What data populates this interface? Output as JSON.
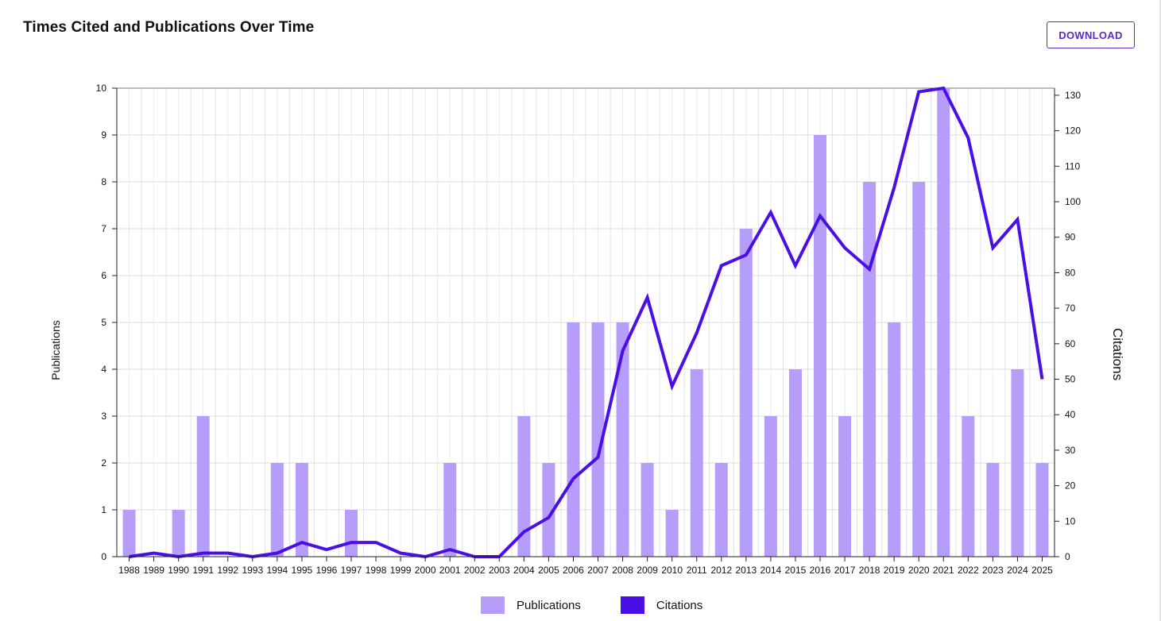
{
  "header": {
    "title": "Times Cited and Publications Over Time",
    "download_label": "DOWNLOAD"
  },
  "colors": {
    "publications": "#b79dfa",
    "citations": "#4a0fe6",
    "button_text": "#5b2cbf",
    "grid": "#dcdcdc"
  },
  "legend": {
    "publications_label": "Publications",
    "citations_label": "Citations"
  },
  "chart_data": {
    "type": "bar",
    "categories": [
      "1988",
      "1989",
      "1990",
      "1991",
      "1992",
      "1993",
      "1994",
      "1995",
      "1996",
      "1997",
      "1998",
      "1999",
      "2000",
      "2001",
      "2002",
      "2003",
      "2004",
      "2005",
      "2006",
      "2007",
      "2008",
      "2009",
      "2010",
      "2011",
      "2012",
      "2013",
      "2014",
      "2015",
      "2016",
      "2017",
      "2018",
      "2019",
      "2020",
      "2021",
      "2022",
      "2023",
      "2024",
      "2025"
    ],
    "series": [
      {
        "name": "Publications",
        "type": "bar",
        "axis": "left",
        "values": [
          1,
          0,
          1,
          3,
          0,
          0,
          2,
          2,
          0,
          1,
          0,
          0,
          0,
          2,
          0,
          0,
          3,
          2,
          5,
          5,
          5,
          2,
          1,
          4,
          2,
          7,
          3,
          4,
          9,
          3,
          8,
          5,
          8,
          10,
          3,
          2,
          4,
          2
        ]
      },
      {
        "name": "Citations",
        "type": "line",
        "axis": "right",
        "values": [
          0,
          1,
          0,
          1,
          1,
          0,
          1,
          4,
          2,
          4,
          4,
          1,
          0,
          2,
          0,
          0,
          7,
          11,
          22,
          28,
          58,
          73,
          48,
          63,
          82,
          85,
          97,
          82,
          96,
          87,
          81,
          104,
          131,
          132,
          118,
          87,
          95,
          50
        ]
      }
    ],
    "ylabel_left": "Publications",
    "ylabel_right": "Citations",
    "ylim_left": [
      0,
      10
    ],
    "ylim_right": [
      0,
      132
    ],
    "yticks_left": [
      0,
      1,
      2,
      3,
      4,
      5,
      6,
      7,
      8,
      9,
      10
    ],
    "yticks_right": [
      0,
      10,
      20,
      30,
      40,
      50,
      60,
      70,
      80,
      90,
      100,
      110,
      120,
      130
    ],
    "grid": true,
    "legend_position": "bottom"
  }
}
